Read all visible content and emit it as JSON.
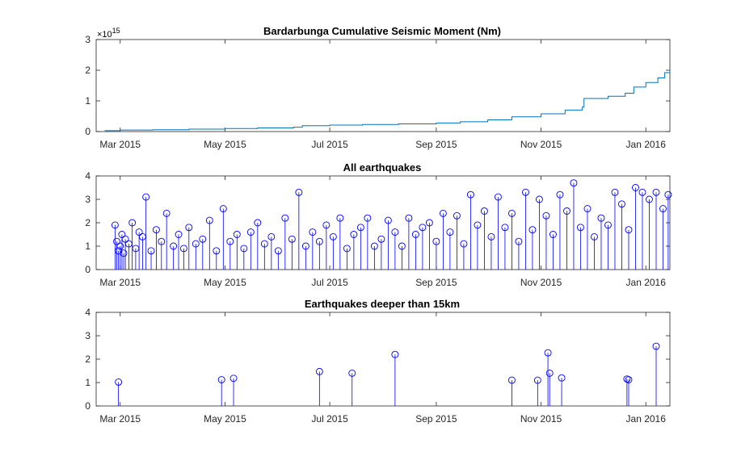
{
  "chart_data": [
    {
      "type": "line",
      "title": "Bardarbunga Cumulative Seismic Moment (Nm)",
      "exponent_label": "×10",
      "exponent_power": "15",
      "xlabel": "",
      "ylabel": "",
      "xlim": [
        "2015-02-15",
        "2016-01-15"
      ],
      "ylim": [
        0,
        3
      ],
      "yticks": [
        0,
        1,
        2,
        3
      ],
      "xticks": [
        {
          "date": "2015-03-01",
          "label": "Mar 2015"
        },
        {
          "date": "2015-05-01",
          "label": "May 2015"
        },
        {
          "date": "2015-07-01",
          "label": "Jul 2015"
        },
        {
          "date": "2015-09-01",
          "label": "Sep 2015"
        },
        {
          "date": "2015-11-01",
          "label": "Nov 2015"
        },
        {
          "date": "2016-01-01",
          "label": "Jan 2016"
        }
      ],
      "series": [
        {
          "color": "#0072bd",
          "x": [
            "2015-02-20",
            "2015-03-01",
            "2015-03-20",
            "2015-04-10",
            "2015-05-01",
            "2015-05-20",
            "2015-06-10",
            "2015-06-15",
            "2015-07-01",
            "2015-07-20",
            "2015-08-10",
            "2015-09-01",
            "2015-09-15",
            "2015-10-01",
            "2015-10-15",
            "2015-11-01",
            "2015-11-15",
            "2015-11-25",
            "2015-11-26",
            "2015-12-10",
            "2015-12-20",
            "2015-12-25",
            "2016-01-01",
            "2016-01-08",
            "2016-01-12",
            "2016-01-15"
          ],
          "y": [
            0.03,
            0.05,
            0.06,
            0.08,
            0.1,
            0.12,
            0.14,
            0.19,
            0.21,
            0.23,
            0.25,
            0.28,
            0.32,
            0.38,
            0.48,
            0.58,
            0.7,
            0.8,
            1.08,
            1.15,
            1.25,
            1.45,
            1.6,
            1.75,
            1.92,
            2.0
          ]
        }
      ]
    },
    {
      "type": "stem",
      "title": "All earthquakes",
      "xlabel": "",
      "ylabel": "",
      "xlim": [
        "2015-02-15",
        "2016-01-15"
      ],
      "ylim": [
        0,
        4
      ],
      "yticks": [
        0,
        1,
        2,
        3,
        4
      ],
      "xticks": [
        {
          "date": "2015-03-01",
          "label": "Mar 2015"
        },
        {
          "date": "2015-05-01",
          "label": "May 2015"
        },
        {
          "date": "2015-07-01",
          "label": "Jul 2015"
        },
        {
          "date": "2015-09-01",
          "label": "Sep 2015"
        },
        {
          "date": "2015-11-01",
          "label": "Nov 2015"
        },
        {
          "date": "2016-01-01",
          "label": "Jan 2016"
        }
      ],
      "marker": "circle",
      "color": "#0000ff",
      "x": [
        "2015-02-26",
        "2015-02-27",
        "2015-02-28",
        "2015-03-01",
        "2015-03-02",
        "2015-03-03",
        "2015-03-04",
        "2015-03-06",
        "2015-03-08",
        "2015-03-10",
        "2015-03-12",
        "2015-03-14",
        "2015-03-16",
        "2015-03-19",
        "2015-03-22",
        "2015-03-25",
        "2015-03-28",
        "2015-04-01",
        "2015-04-04",
        "2015-04-07",
        "2015-04-10",
        "2015-04-14",
        "2015-04-18",
        "2015-04-22",
        "2015-04-26",
        "2015-04-30",
        "2015-05-04",
        "2015-05-08",
        "2015-05-12",
        "2015-05-16",
        "2015-05-20",
        "2015-05-24",
        "2015-05-28",
        "2015-06-01",
        "2015-06-05",
        "2015-06-09",
        "2015-06-13",
        "2015-06-17",
        "2015-06-21",
        "2015-06-25",
        "2015-06-29",
        "2015-07-03",
        "2015-07-07",
        "2015-07-11",
        "2015-07-15",
        "2015-07-19",
        "2015-07-23",
        "2015-07-27",
        "2015-07-31",
        "2015-08-04",
        "2015-08-08",
        "2015-08-12",
        "2015-08-16",
        "2015-08-20",
        "2015-08-24",
        "2015-08-28",
        "2015-09-01",
        "2015-09-05",
        "2015-09-09",
        "2015-09-13",
        "2015-09-17",
        "2015-09-21",
        "2015-09-25",
        "2015-09-29",
        "2015-10-03",
        "2015-10-07",
        "2015-10-11",
        "2015-10-15",
        "2015-10-19",
        "2015-10-23",
        "2015-10-27",
        "2015-10-31",
        "2015-11-04",
        "2015-11-08",
        "2015-11-12",
        "2015-11-16",
        "2015-11-20",
        "2015-11-24",
        "2015-11-28",
        "2015-12-02",
        "2015-12-06",
        "2015-12-10",
        "2015-12-14",
        "2015-12-18",
        "2015-12-22",
        "2015-12-26",
        "2015-12-30",
        "2016-01-03",
        "2016-01-07",
        "2016-01-11",
        "2016-01-14"
      ],
      "y": [
        1.9,
        1.2,
        0.8,
        1.0,
        1.5,
        0.7,
        1.3,
        1.1,
        2.0,
        0.9,
        1.6,
        1.4,
        3.1,
        0.8,
        1.7,
        1.2,
        2.4,
        1.0,
        1.5,
        0.9,
        1.8,
        1.1,
        1.3,
        2.1,
        0.8,
        2.6,
        1.2,
        1.5,
        0.9,
        1.6,
        2.0,
        1.1,
        1.4,
        0.8,
        2.2,
        1.3,
        3.3,
        1.0,
        1.6,
        1.2,
        1.9,
        1.4,
        2.2,
        0.9,
        1.5,
        1.8,
        2.2,
        1.0,
        1.3,
        2.1,
        1.6,
        1.0,
        2.2,
        1.5,
        1.8,
        2.0,
        1.2,
        2.4,
        1.6,
        2.3,
        1.1,
        3.2,
        1.9,
        2.5,
        1.4,
        3.1,
        1.8,
        2.4,
        1.2,
        3.3,
        1.7,
        3.0,
        2.3,
        1.5,
        3.2,
        2.5,
        3.7,
        1.8,
        2.6,
        1.4,
        2.2,
        1.9,
        3.3,
        2.8,
        1.7,
        3.5,
        3.3,
        3.0,
        3.3,
        2.6,
        3.2
      ]
    },
    {
      "type": "stem",
      "title": "Earthquakes deeper than 15km",
      "xlabel": "",
      "ylabel": "",
      "xlim": [
        "2015-02-15",
        "2016-01-15"
      ],
      "ylim": [
        0,
        4
      ],
      "yticks": [
        0,
        1,
        2,
        3,
        4
      ],
      "xticks": [
        {
          "date": "2015-03-01",
          "label": "Mar 2015"
        },
        {
          "date": "2015-05-01",
          "label": "May 2015"
        },
        {
          "date": "2015-07-01",
          "label": "Jul 2015"
        },
        {
          "date": "2015-09-01",
          "label": "Sep 2015"
        },
        {
          "date": "2015-11-01",
          "label": "Nov 2015"
        },
        {
          "date": "2016-01-01",
          "label": "Jan 2016"
        }
      ],
      "marker": "circle",
      "color": "#0000ff",
      "x": [
        "2015-02-28",
        "2015-04-29",
        "2015-05-06",
        "2015-06-25",
        "2015-07-14",
        "2015-08-08",
        "2015-10-15",
        "2015-10-30",
        "2015-11-05",
        "2015-11-06",
        "2015-11-13",
        "2015-12-21",
        "2015-12-22",
        "2016-01-07"
      ],
      "y": [
        1.02,
        1.12,
        1.18,
        1.47,
        1.4,
        2.2,
        1.1,
        1.1,
        2.27,
        1.4,
        1.2,
        1.15,
        1.12,
        2.55
      ]
    }
  ]
}
